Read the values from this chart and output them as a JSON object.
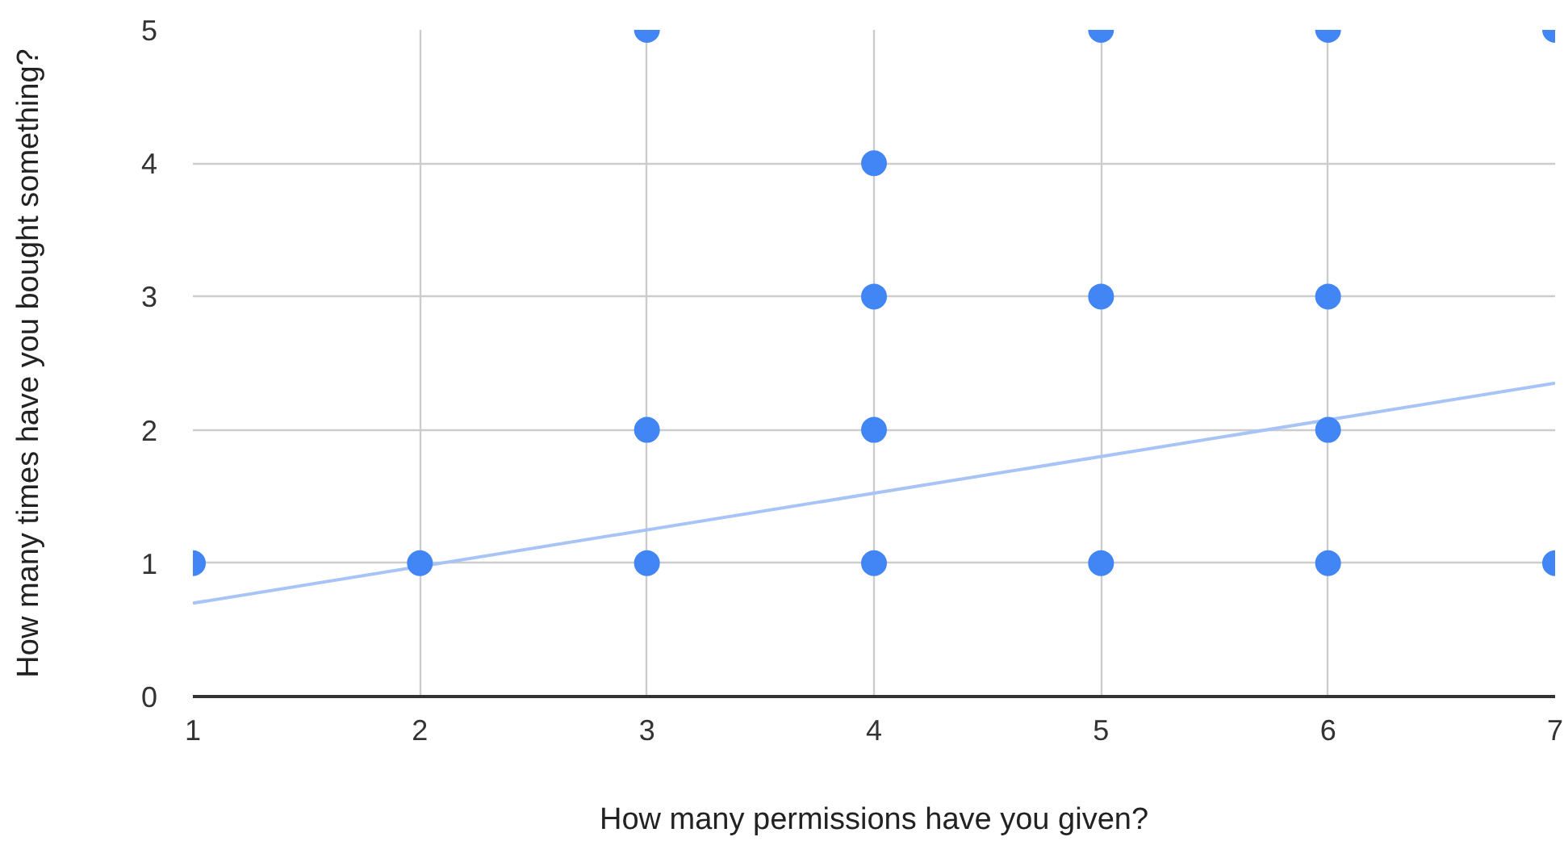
{
  "chart_data": {
    "type": "scatter",
    "xlabel": "How many permissions have you given?",
    "ylabel": "How many times have you bought something?",
    "xlim": [
      1,
      7
    ],
    "ylim": [
      0,
      5
    ],
    "xticks": [
      1,
      2,
      3,
      4,
      5,
      6,
      7
    ],
    "yticks": [
      0,
      1,
      2,
      3,
      4,
      5
    ],
    "grid": true,
    "series": [
      {
        "color": "#4285f4",
        "marker": "circle",
        "x": [
          1,
          2,
          3,
          3,
          3,
          4,
          4,
          4,
          4,
          5,
          5,
          5,
          6,
          6,
          6,
          6,
          7,
          7
        ],
        "values": [
          1,
          1,
          1,
          2,
          5,
          1,
          2,
          3,
          4,
          1,
          3,
          5,
          1,
          2,
          3,
          5,
          1,
          5
        ]
      },
      {
        "type": "line",
        "color": "#a8c4f7",
        "marker": "none",
        "x": [
          1,
          7
        ],
        "values": [
          0.7,
          2.35
        ]
      }
    ]
  }
}
